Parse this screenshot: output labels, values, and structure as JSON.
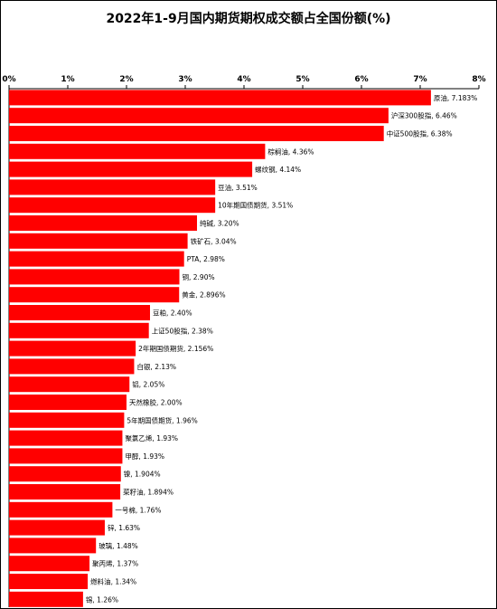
{
  "chart_data": {
    "type": "bar",
    "orientation": "horizontal",
    "title": "2022年1-9月国内期货期权成交额占全国份额(%)",
    "xlabel": "",
    "ylabel": "",
    "xlim": [
      0,
      8
    ],
    "x_ticks": [
      "0%",
      "1%",
      "2%",
      "3%",
      "4%",
      "5%",
      "6%",
      "7%",
      "8%"
    ],
    "axis_position": "top",
    "grid": false,
    "bar_color": "#ff0000",
    "categories": [
      "原油",
      "沪深300股指",
      "中证500股指",
      "棕榈油",
      "螺纹钢",
      "豆油",
      "10年期国债期货",
      "纯碱",
      "铁矿石",
      "PTA",
      "铜",
      "黄金",
      "豆粕",
      "上证50股指",
      "2年期国债期货",
      "白银",
      "铝",
      "天然橡胶",
      "5年期国债期货",
      "聚氯乙烯",
      "甲醇",
      "镍",
      "菜籽油",
      "一号棉",
      "锌",
      "玻璃",
      "聚丙烯",
      "燃料油",
      "锡"
    ],
    "values": [
      7.183,
      6.46,
      6.38,
      4.36,
      4.14,
      3.51,
      3.51,
      3.2,
      3.04,
      2.98,
      2.9,
      2.896,
      2.4,
      2.38,
      2.156,
      2.13,
      2.05,
      2.0,
      1.96,
      1.93,
      1.93,
      1.904,
      1.894,
      1.76,
      1.63,
      1.48,
      1.37,
      1.34,
      1.26
    ],
    "labels": [
      "原油, 7.183%",
      "沪深300股指, 6.46%",
      "中证500股指, 6.38%",
      "棕榈油, 4.36%",
      "螺纹钢, 4.14%",
      "豆油, 3.51%",
      "10年期国债期货, 3.51%",
      "纯碱, 3.20%",
      "铁矿石, 3.04%",
      "PTA, 2.98%",
      "铜, 2.90%",
      "黄金, 2.896%",
      "豆粕, 2.40%",
      "上证50股指, 2.38%",
      "2年期国债期货, 2.156%",
      "白银, 2.13%",
      "铝, 2.05%",
      "天然橡胶, 2.00%",
      "5年期国债期货, 1.96%",
      "聚氯乙烯, 1.93%",
      "甲醇, 1.93%",
      "镍, 1.904%",
      "菜籽油, 1.894%",
      "一号棉, 1.76%",
      "锌, 1.63%",
      "玻璃, 1.48%",
      "聚丙烯, 1.37%",
      "燃料油, 1.34%",
      "锡, 1.26%"
    ]
  }
}
